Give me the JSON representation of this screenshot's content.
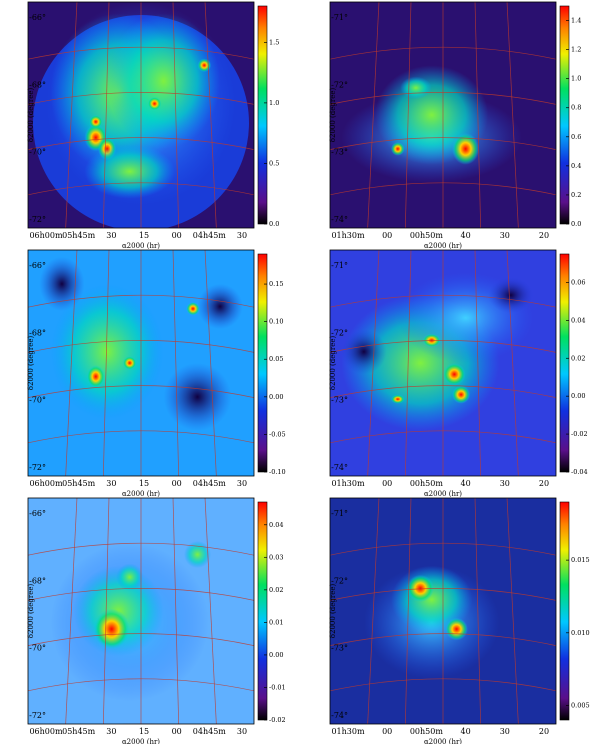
{
  "panels": [
    {
      "x_label": "α2000 (hr)",
      "y_label": "δ2000 (degree)",
      "x_tick_labels": [
        "06h00m",
        "05h45m",
        "30",
        "15",
        "00",
        "04h45m",
        "30"
      ],
      "y_tick_labels": [
        "-66°",
        "-68°",
        "-70°",
        "-72°"
      ],
      "colorbar": {
        "lim": [
          0,
          1.8
        ],
        "ticks": [
          {
            "value": 0,
            "label": "0.0"
          },
          0.5,
          {
            "value": 1,
            "label": "1.0"
          },
          1.5
        ]
      }
    },
    {
      "x_label": "α2000 (hr)",
      "y_label": "δ2000 (degree)",
      "x_tick_labels": [
        "01h30m",
        "00",
        "00h50m",
        "40",
        "30",
        "20"
      ],
      "y_tick_labels": [
        "-71°",
        "-72°",
        "-73°",
        "-74°"
      ],
      "colorbar": {
        "lim": [
          0,
          1.5
        ],
        "ticks": [
          {
            "value": 0,
            "label": "0.0"
          },
          0.2,
          0.4,
          0.6,
          0.8,
          {
            "value": 1,
            "label": "1.0"
          },
          1.2,
          1.4
        ]
      }
    },
    {
      "x_label": "α2000 (hr)",
      "y_label": "δ2000 (degree)",
      "x_tick_labels": [
        "06h00m",
        "05h45m",
        "30",
        "15",
        "00",
        "04h45m",
        "30"
      ],
      "y_tick_labels": [
        "-66°",
        "-68°",
        "-70°",
        "-72°"
      ],
      "colorbar": {
        "lim": [
          -0.1,
          0.19
        ],
        "ticks": [
          {
            "value": -0.1,
            "label": "-0.10"
          },
          -0.05,
          {
            "value": 0,
            "label": "0.00"
          },
          0.05,
          {
            "value": 0.1,
            "label": "0.10"
          },
          0.15
        ]
      }
    },
    {
      "x_label": "α2000 (hr)",
      "y_label": "δ2000 (degree)",
      "x_tick_labels": [
        "01h30m",
        "00",
        "00h50m",
        "40",
        "30",
        "20"
      ],
      "y_tick_labels": [
        "-71°",
        "-72°",
        "-73°",
        "-74°"
      ],
      "colorbar": {
        "lim": [
          -0.04,
          0.075
        ],
        "ticks": [
          -0.04,
          -0.02,
          {
            "value": 0,
            "label": "0.00"
          },
          0.02,
          0.04,
          0.06
        ]
      }
    },
    {
      "x_label": "α2000 (hr)",
      "y_label": "δ2000 (degree)",
      "x_tick_labels": [
        "06h00m",
        "05h45m",
        "30",
        "15",
        "00",
        "04h45m",
        "30"
      ],
      "y_tick_labels": [
        "-66°",
        "-68°",
        "-70°",
        "-72°"
      ],
      "colorbar": {
        "lim": [
          -0.02,
          0.047
        ],
        "ticks": [
          -0.02,
          -0.01,
          {
            "value": 0,
            "label": "0.00"
          },
          0.01,
          0.02,
          0.03,
          0.04
        ]
      }
    },
    {
      "x_label": "α2000 (hr)",
      "y_label": "δ2000 (degree)",
      "x_tick_labels": [
        "01h30m",
        "00",
        "00h50m",
        "40",
        "30",
        "20"
      ],
      "y_tick_labels": [
        "-71°",
        "-72°",
        "-73°",
        "-74°"
      ],
      "colorbar": {
        "lim": [
          0.004,
          0.019
        ],
        "ticks": [
          0.005,
          {
            "value": 0.01,
            "label": "0.010"
          },
          0.015
        ]
      }
    }
  ]
}
